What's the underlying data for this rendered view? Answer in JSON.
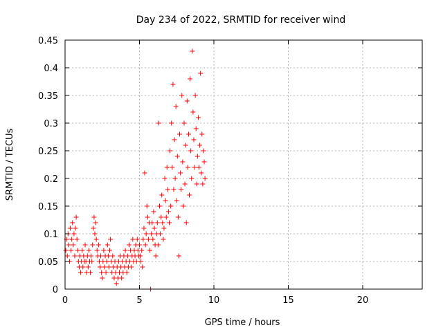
{
  "chart_data": {
    "type": "scatter",
    "title": "Day 234 of 2022, SRMTID for receiver wind",
    "xlabel": "GPS time / hours",
    "ylabel": "SRMTID / TECUs",
    "xlim": [
      0,
      24
    ],
    "ylim": [
      0,
      0.45
    ],
    "xticks": [
      0,
      5,
      10,
      15,
      20
    ],
    "xtick_labels": [
      "0",
      "5",
      "10",
      "15",
      "20"
    ],
    "yticks": [
      0,
      0.05,
      0.1,
      0.15,
      0.2,
      0.25,
      0.3,
      0.35,
      0.4,
      0.45
    ],
    "ytick_labels": [
      "0",
      "0.05",
      "0.1",
      "0.15",
      "0.2",
      "0.25",
      "0.3",
      "0.35",
      "0.4",
      "0.45"
    ],
    "grid": true,
    "marker": "+",
    "color": "#ff0000",
    "series": [
      {
        "name": "SRMTID",
        "points": [
          [
            0.05,
            0.07
          ],
          [
            0.1,
            0.09
          ],
          [
            0.15,
            0.06
          ],
          [
            0.2,
            0.1
          ],
          [
            0.25,
            0.08
          ],
          [
            0.3,
            0.05
          ],
          [
            0.35,
            0.11
          ],
          [
            0.4,
            0.07
          ],
          [
            0.45,
            0.09
          ],
          [
            0.5,
            0.12
          ],
          [
            0.55,
            0.08
          ],
          [
            0.6,
            0.1
          ],
          [
            0.65,
            0.06
          ],
          [
            0.7,
            0.11
          ],
          [
            0.75,
            0.13
          ],
          [
            0.8,
            0.09
          ],
          [
            0.85,
            0.07
          ],
          [
            0.9,
            0.05
          ],
          [
            0.95,
            0.04
          ],
          [
            1.0,
            0.06
          ],
          [
            1.05,
            0.03
          ],
          [
            1.1,
            0.05
          ],
          [
            1.15,
            0.07
          ],
          [
            1.2,
            0.04
          ],
          [
            1.25,
            0.06
          ],
          [
            1.3,
            0.05
          ],
          [
            1.35,
            0.08
          ],
          [
            1.4,
            0.05
          ],
          [
            1.45,
            0.03
          ],
          [
            1.5,
            0.06
          ],
          [
            1.55,
            0.04
          ],
          [
            1.6,
            0.07
          ],
          [
            1.65,
            0.05
          ],
          [
            1.7,
            0.03
          ],
          [
            1.75,
            0.06
          ],
          [
            1.8,
            0.05
          ],
          [
            1.85,
            0.08
          ],
          [
            1.9,
            0.11
          ],
          [
            1.95,
            0.13
          ],
          [
            2.0,
            0.1
          ],
          [
            2.05,
            0.12
          ],
          [
            2.1,
            0.09
          ],
          [
            2.15,
            0.07
          ],
          [
            2.2,
            0.06
          ],
          [
            2.25,
            0.08
          ],
          [
            2.3,
            0.05
          ],
          [
            2.35,
            0.04
          ],
          [
            2.4,
            0.06
          ],
          [
            2.45,
            0.03
          ],
          [
            2.5,
            0.02
          ],
          [
            2.55,
            0.05
          ],
          [
            2.6,
            0.07
          ],
          [
            2.65,
            0.04
          ],
          [
            2.7,
            0.06
          ],
          [
            2.75,
            0.03
          ],
          [
            2.8,
            0.05
          ],
          [
            2.85,
            0.08
          ],
          [
            2.9,
            0.06
          ],
          [
            2.95,
            0.04
          ],
          [
            3.0,
            0.07
          ],
          [
            3.05,
            0.09
          ],
          [
            3.1,
            0.05
          ],
          [
            3.15,
            0.03
          ],
          [
            3.2,
            0.06
          ],
          [
            3.25,
            0.04
          ],
          [
            3.3,
            0.02
          ],
          [
            3.35,
            0.05
          ],
          [
            3.4,
            0.03
          ],
          [
            3.45,
            0.01
          ],
          [
            3.5,
            0.04
          ],
          [
            3.55,
            0.02
          ],
          [
            3.6,
            0.05
          ],
          [
            3.65,
            0.03
          ],
          [
            3.7,
            0.06
          ],
          [
            3.75,
            0.04
          ],
          [
            3.8,
            0.02
          ],
          [
            3.85,
            0.05
          ],
          [
            3.9,
            0.03
          ],
          [
            3.95,
            0.06
          ],
          [
            4.0,
            0.04
          ],
          [
            4.05,
            0.07
          ],
          [
            4.1,
            0.05
          ],
          [
            4.15,
            0.03
          ],
          [
            4.2,
            0.06
          ],
          [
            4.25,
            0.04
          ],
          [
            4.3,
            0.08
          ],
          [
            4.35,
            0.05
          ],
          [
            4.4,
            0.07
          ],
          [
            4.45,
            0.04
          ],
          [
            4.5,
            0.06
          ],
          [
            4.55,
            0.09
          ],
          [
            4.6,
            0.05
          ],
          [
            4.65,
            0.07
          ],
          [
            4.7,
            0.06
          ],
          [
            4.75,
            0.08
          ],
          [
            4.8,
            0.05
          ],
          [
            4.85,
            0.09
          ],
          [
            4.9,
            0.07
          ],
          [
            4.95,
            0.06
          ],
          [
            5.0,
            0.08
          ],
          [
            5.05,
            0.06
          ],
          [
            5.1,
            0.05
          ],
          [
            5.15,
            0.07
          ],
          [
            5.2,
            0.04
          ],
          [
            5.25,
            0.09
          ],
          [
            5.3,
            0.11
          ],
          [
            5.35,
            0.21
          ],
          [
            5.4,
            0.08
          ],
          [
            5.45,
            0.1
          ],
          [
            5.5,
            0.15
          ],
          [
            5.55,
            0.13
          ],
          [
            5.6,
            0.09
          ],
          [
            5.65,
            0.12
          ],
          [
            5.7,
            0.07
          ],
          [
            5.75,
            0.0
          ],
          [
            5.8,
            0.1
          ],
          [
            5.85,
            0.12
          ],
          [
            5.9,
            0.09
          ],
          [
            5.95,
            0.14
          ],
          [
            6.0,
            0.11
          ],
          [
            6.05,
            0.08
          ],
          [
            6.1,
            0.06
          ],
          [
            6.15,
            0.1
          ],
          [
            6.2,
            0.12
          ],
          [
            6.25,
            0.08
          ],
          [
            6.3,
            0.3
          ],
          [
            6.35,
            0.15
          ],
          [
            6.4,
            0.1
          ],
          [
            6.45,
            0.13
          ],
          [
            6.5,
            0.17
          ],
          [
            6.55,
            0.12
          ],
          [
            6.6,
            0.09
          ],
          [
            6.65,
            0.11
          ],
          [
            6.7,
            0.2
          ],
          [
            6.75,
            0.16
          ],
          [
            6.8,
            0.13
          ],
          [
            6.85,
            0.22
          ],
          [
            6.9,
            0.18
          ],
          [
            6.95,
            0.14
          ],
          [
            7.0,
            0.12
          ],
          [
            7.05,
            0.25
          ],
          [
            7.1,
            0.15
          ],
          [
            7.15,
            0.3
          ],
          [
            7.2,
            0.22
          ],
          [
            7.25,
            0.37
          ],
          [
            7.3,
            0.18
          ],
          [
            7.35,
            0.27
          ],
          [
            7.4,
            0.2
          ],
          [
            7.45,
            0.33
          ],
          [
            7.5,
            0.16
          ],
          [
            7.55,
            0.24
          ],
          [
            7.6,
            0.13
          ],
          [
            7.65,
            0.06
          ],
          [
            7.7,
            0.28
          ],
          [
            7.75,
            0.21
          ],
          [
            7.8,
            0.18
          ],
          [
            7.85,
            0.35
          ],
          [
            7.9,
            0.23
          ],
          [
            7.95,
            0.15
          ],
          [
            8.0,
            0.3
          ],
          [
            8.05,
            0.19
          ],
          [
            8.1,
            0.26
          ],
          [
            8.15,
            0.12
          ],
          [
            8.2,
            0.34
          ],
          [
            8.25,
            0.22
          ],
          [
            8.3,
            0.28
          ],
          [
            8.35,
            0.17
          ],
          [
            8.4,
            0.38
          ],
          [
            8.45,
            0.25
          ],
          [
            8.5,
            0.2
          ],
          [
            8.55,
            0.43
          ],
          [
            8.6,
            0.32
          ],
          [
            8.65,
            0.27
          ],
          [
            8.7,
            0.22
          ],
          [
            8.75,
            0.35
          ],
          [
            8.8,
            0.29
          ],
          [
            8.85,
            0.19
          ],
          [
            8.9,
            0.24
          ],
          [
            8.95,
            0.31
          ],
          [
            9.0,
            0.22
          ],
          [
            9.05,
            0.26
          ],
          [
            9.1,
            0.39
          ],
          [
            9.15,
            0.21
          ],
          [
            9.2,
            0.28
          ],
          [
            9.25,
            0.19
          ],
          [
            9.3,
            0.25
          ],
          [
            9.35,
            0.23
          ],
          [
            9.4,
            0.2
          ]
        ]
      }
    ]
  }
}
